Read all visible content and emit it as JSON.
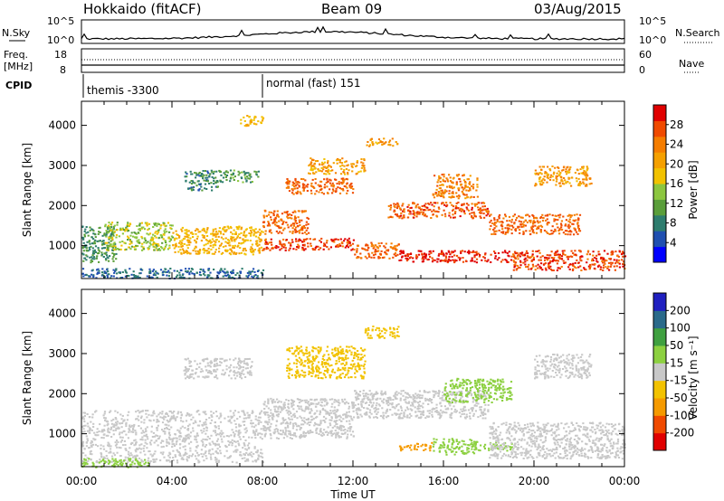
{
  "header": {
    "station": "Hokkaido (fitACF)",
    "beam": "Beam 09",
    "date": "03/Aug/2015"
  },
  "noise": {
    "left_label": "N.Sky",
    "right_label": "N.Search",
    "left_ticks": [
      "10^5",
      "10^0"
    ],
    "right_ticks": [
      "10^5",
      "10^0"
    ]
  },
  "freq": {
    "label_1": "Freq.",
    "label_2": "[MHz]",
    "ticks": [
      "18",
      "8"
    ],
    "nave_label": "Nave",
    "nave_ticks": [
      "60",
      "0"
    ]
  },
  "cpid": {
    "label": "CPID",
    "segments": [
      {
        "text": "themis -3300",
        "start_hour": 0
      },
      {
        "text": "normal (fast) 151",
        "start_hour": 8
      }
    ]
  },
  "chart_data": [
    {
      "type": "heatmap",
      "name": "power-panel",
      "ylabel": "Slant Range [km]",
      "xlabel": "",
      "x_unit_hours": [
        0,
        24
      ],
      "ylim": [
        180,
        4600
      ],
      "yticks": [
        "4000",
        "3000",
        "2000",
        "1000"
      ],
      "ytick_values": [
        4000,
        3000,
        2000,
        1000
      ],
      "colorbar": {
        "label": "Power [dB]",
        "ticks": [
          "28",
          "24",
          "20",
          "16",
          "12",
          "8",
          "4"
        ],
        "range": [
          0,
          30
        ],
        "colors": [
          "#0000ff",
          "#1f4fb0",
          "#2e7d6e",
          "#5a9e3a",
          "#8cc63f",
          "#f2c200",
          "#f5a000",
          "#f57d00",
          "#f04a00",
          "#e00000"
        ]
      },
      "bands": [
        {
          "x": [
            0,
            1.5
          ],
          "y": [
            600,
            1500
          ],
          "level": 9
        },
        {
          "x": [
            0,
            8
          ],
          "y": [
            200,
            450
          ],
          "level": 6
        },
        {
          "x": [
            1,
            4
          ],
          "y": [
            900,
            1600
          ],
          "level": 14
        },
        {
          "x": [
            4,
            8
          ],
          "y": [
            800,
            1500
          ],
          "level": 18
        },
        {
          "x": [
            4.5,
            6
          ],
          "y": [
            2400,
            2900
          ],
          "level": 8
        },
        {
          "x": [
            6,
            7.8
          ],
          "y": [
            2600,
            2900
          ],
          "level": 10
        },
        {
          "x": [
            8,
            10
          ],
          "y": [
            1300,
            1900
          ],
          "level": 24
        },
        {
          "x": [
            8,
            12
          ],
          "y": [
            900,
            1200
          ],
          "level": 26
        },
        {
          "x": [
            9,
            12
          ],
          "y": [
            2300,
            2700
          ],
          "level": 24
        },
        {
          "x": [
            10,
            12.5
          ],
          "y": [
            2800,
            3200
          ],
          "level": 20
        },
        {
          "x": [
            12,
            14
          ],
          "y": [
            700,
            1100
          ],
          "level": 24
        },
        {
          "x": [
            13.5,
            18
          ],
          "y": [
            1700,
            2100
          ],
          "level": 25
        },
        {
          "x": [
            14,
            19
          ],
          "y": [
            600,
            900
          ],
          "level": 28
        },
        {
          "x": [
            15.5,
            17.5
          ],
          "y": [
            2200,
            2800
          ],
          "level": 22
        },
        {
          "x": [
            18,
            22
          ],
          "y": [
            1300,
            1800
          ],
          "level": 24
        },
        {
          "x": [
            19,
            24
          ],
          "y": [
            400,
            900
          ],
          "level": 26
        },
        {
          "x": [
            20,
            22.5
          ],
          "y": [
            2500,
            3000
          ],
          "level": 20
        },
        {
          "x": [
            12.5,
            14
          ],
          "y": [
            3500,
            3700
          ],
          "level": 20
        },
        {
          "x": [
            7,
            8
          ],
          "y": [
            4000,
            4300
          ],
          "level": 18
        }
      ]
    },
    {
      "type": "heatmap",
      "name": "velocity-panel",
      "ylabel": "Slant Range [km]",
      "xlabel": "Time UT",
      "x_unit_hours": [
        0,
        24
      ],
      "ylim": [
        180,
        4600
      ],
      "yticks": [
        "4000",
        "3000",
        "2000",
        "1000"
      ],
      "ytick_values": [
        4000,
        3000,
        2000,
        1000
      ],
      "xticks": [
        "00:00",
        "04:00",
        "08:00",
        "12:00",
        "16:00",
        "20:00",
        "00:00"
      ],
      "xtick_hours": [
        0,
        4,
        8,
        12,
        16,
        20,
        24
      ],
      "colorbar": {
        "label": "Velocity [m s⁻¹]",
        "ticks": [
          "200",
          "100",
          "50",
          "15",
          "-15",
          "-50",
          "-100",
          "-200"
        ],
        "range": [
          -250,
          250
        ],
        "colors": [
          "#e00000",
          "#f04a00",
          "#f59a00",
          "#f2c200",
          "#c8c8c8",
          "#8cd040",
          "#3fa040",
          "#2a6a8a",
          "#2020c0"
        ]
      },
      "bands": [
        {
          "x": [
            0,
            8
          ],
          "y": [
            300,
            1600
          ],
          "level": 0
        },
        {
          "x": [
            0,
            3
          ],
          "y": [
            180,
            400
          ],
          "level": 30
        },
        {
          "x": [
            4.5,
            7.5
          ],
          "y": [
            2400,
            2900
          ],
          "level": 0
        },
        {
          "x": [
            8,
            12
          ],
          "y": [
            900,
            1900
          ],
          "level": 0
        },
        {
          "x": [
            9,
            12.5
          ],
          "y": [
            2400,
            3200
          ],
          "level": -40
        },
        {
          "x": [
            12,
            18
          ],
          "y": [
            1400,
            2100
          ],
          "level": 0
        },
        {
          "x": [
            14,
            15.5
          ],
          "y": [
            600,
            800
          ],
          "level": -60
        },
        {
          "x": [
            15.5,
            17.5
          ],
          "y": [
            500,
            900
          ],
          "level": 40
        },
        {
          "x": [
            17.5,
            19
          ],
          "y": [
            600,
            800
          ],
          "level": 25
        },
        {
          "x": [
            18,
            24
          ],
          "y": [
            400,
            1300
          ],
          "level": 0
        },
        {
          "x": [
            16,
            19
          ],
          "y": [
            1800,
            2400
          ],
          "level": 20
        },
        {
          "x": [
            20,
            22.5
          ],
          "y": [
            2400,
            3000
          ],
          "level": 0
        },
        {
          "x": [
            12.5,
            14
          ],
          "y": [
            3400,
            3700
          ],
          "level": -30
        }
      ]
    }
  ]
}
